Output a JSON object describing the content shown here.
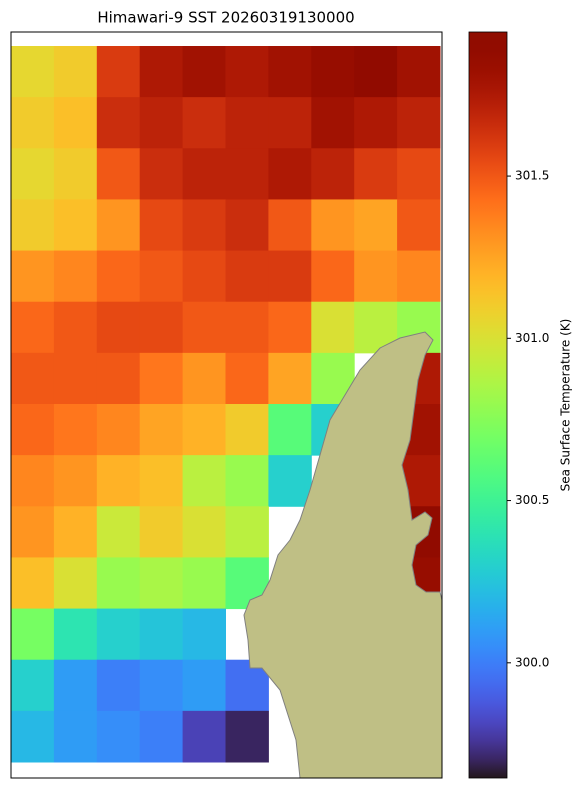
{
  "chart_data": {
    "type": "heatmap",
    "title": "Himawari-9 SST 20260319130000",
    "colorbar_label": "Sea Surface Temperature (K)",
    "colormap": "turbo",
    "clim": [
      299.645,
      301.944
    ],
    "cticks": [
      {
        "value": 300,
        "label": "300.0"
      },
      300.5,
      {
        "value": 301,
        "label": "301.0"
      },
      301.5
    ],
    "values": [
      [
        301.05,
        301.1,
        301.6,
        301.75,
        301.8,
        301.75,
        301.8,
        301.85,
        301.9,
        301.8
      ],
      [
        301.1,
        301.15,
        301.65,
        301.7,
        301.65,
        301.7,
        301.7,
        301.8,
        301.75,
        301.7
      ],
      [
        301.05,
        301.1,
        301.5,
        301.65,
        301.7,
        301.7,
        301.75,
        301.7,
        301.6,
        301.55
      ],
      [
        301.1,
        301.15,
        301.3,
        301.55,
        301.6,
        301.65,
        301.5,
        301.3,
        301.25,
        301.5
      ],
      [
        301.3,
        301.35,
        301.45,
        301.5,
        301.55,
        301.6,
        301.6,
        301.45,
        301.3,
        301.35
      ],
      [
        301.45,
        301.5,
        301.55,
        301.55,
        301.5,
        301.5,
        301.45,
        301.0,
        300.9,
        300.8
      ],
      [
        301.5,
        301.5,
        301.5,
        301.4,
        301.3,
        301.45,
        301.25,
        300.8,
        null,
        301.75
      ],
      [
        301.45,
        301.4,
        301.35,
        301.25,
        301.2,
        301.1,
        300.6,
        300.3,
        null,
        301.8
      ],
      [
        301.35,
        301.3,
        301.2,
        301.15,
        300.9,
        300.8,
        300.3,
        null,
        null,
        301.75
      ],
      [
        301.3,
        301.2,
        300.95,
        301.1,
        301.0,
        300.9,
        null,
        null,
        null,
        301.9
      ],
      [
        301.15,
        301.0,
        300.8,
        300.85,
        300.8,
        300.6,
        null,
        null,
        null,
        301.85
      ],
      [
        300.7,
        300.4,
        300.3,
        300.25,
        300.2,
        null,
        null,
        null,
        null,
        null
      ],
      [
        300.3,
        300.1,
        300.0,
        300.05,
        300.1,
        299.95,
        null,
        null,
        null,
        null
      ],
      [
        300.2,
        300.1,
        300.05,
        300.0,
        299.8,
        299.7,
        null,
        null,
        null,
        null
      ]
    ]
  }
}
